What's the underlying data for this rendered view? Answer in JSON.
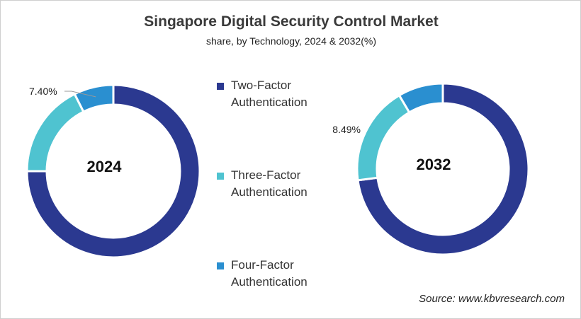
{
  "chart_data": [
    {
      "type": "pie",
      "donut": true,
      "center_label": "2024",
      "categories": [
        "Two-Factor Authentication",
        "Three-Factor Authentication",
        "Four-Factor Authentication"
      ],
      "values": [
        75.0,
        17.6,
        7.4
      ],
      "data_labels": {
        "Four-Factor Authentication": "7.40%"
      },
      "colors": [
        "#2b3990",
        "#4fc3d0",
        "#2a8fd0"
      ]
    },
    {
      "type": "pie",
      "donut": true,
      "center_label": "2032",
      "categories": [
        "Two-Factor Authentication",
        "Three-Factor Authentication",
        "Four-Factor Authentication"
      ],
      "values": [
        72.9,
        18.61,
        8.49
      ],
      "data_labels": {
        "Four-Factor Authentication": "8.49%"
      },
      "colors": [
        "#2b3990",
        "#4fc3d0",
        "#2a8fd0"
      ]
    }
  ],
  "title": "Singapore Digital Security Control Market",
  "subtitle": "share, by Technology, 2024 & 2032(%)",
  "legend": [
    {
      "line1": "Two-Factor",
      "line2": "Authentication",
      "color": "#2b3990"
    },
    {
      "line1": "Three-Factor",
      "line2": "Authentication",
      "color": "#4fc3d0"
    },
    {
      "line1": "Four-Factor",
      "line2": "Authentication",
      "color": "#2a8fd0"
    }
  ],
  "source": "Source: www.kbvresearch.com"
}
